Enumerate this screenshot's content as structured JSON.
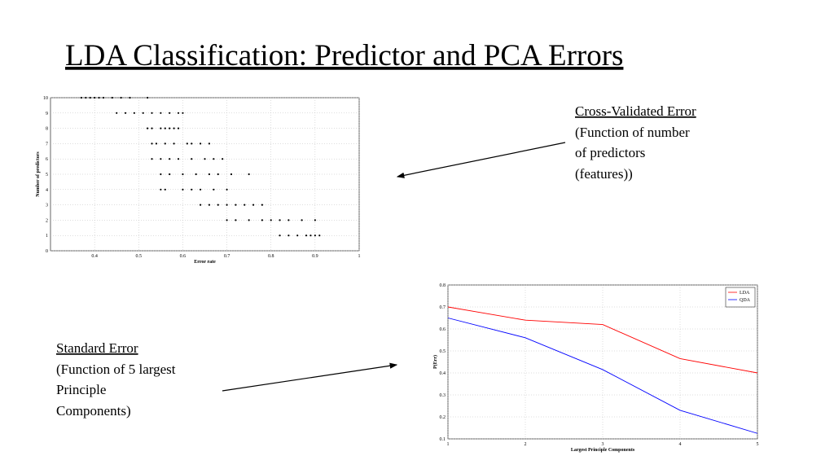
{
  "title": "LDA Classification:  Predictor and PCA Errors",
  "annotations": [
    {
      "heading": "Cross-Validated Error",
      "lines": [
        "(Function of number",
        "of predictors",
        "(features))"
      ]
    },
    {
      "heading": "Standard Error",
      "lines": [
        "(Function of 5 largest",
        "Principle",
        "Components)"
      ]
    }
  ],
  "chart_data": [
    {
      "type": "scatter",
      "xlabel": "Error rate",
      "ylabel": "Number of predictors",
      "color": "#000000",
      "grid": true,
      "xlim": [
        0.3,
        1
      ],
      "xticks": [
        0.4,
        0.5,
        0.6,
        0.7,
        0.8,
        0.9,
        1
      ],
      "ylim": [
        0,
        10
      ],
      "yticks": [
        0,
        1,
        2,
        3,
        4,
        5,
        6,
        7,
        8,
        9,
        10
      ],
      "x": [
        0.37,
        0.38,
        0.39,
        0.4,
        0.41,
        0.42,
        0.44,
        0.46,
        0.48,
        0.52,
        0.45,
        0.47,
        0.49,
        0.51,
        0.53,
        0.55,
        0.57,
        0.59,
        0.6,
        0.52,
        0.53,
        0.55,
        0.56,
        0.57,
        0.58,
        0.59,
        0.53,
        0.54,
        0.56,
        0.58,
        0.61,
        0.62,
        0.64,
        0.66,
        0.53,
        0.55,
        0.57,
        0.59,
        0.62,
        0.65,
        0.67,
        0.69,
        0.55,
        0.57,
        0.6,
        0.63,
        0.66,
        0.68,
        0.71,
        0.75,
        0.55,
        0.56,
        0.6,
        0.62,
        0.64,
        0.67,
        0.7,
        0.64,
        0.66,
        0.68,
        0.7,
        0.72,
        0.74,
        0.76,
        0.78,
        0.7,
        0.72,
        0.75,
        0.78,
        0.8,
        0.82,
        0.84,
        0.87,
        0.9,
        0.82,
        0.84,
        0.86,
        0.88,
        0.89,
        0.9,
        0.91
      ],
      "values": [
        10,
        10,
        10,
        10,
        10,
        10,
        10,
        10,
        10,
        10,
        9,
        9,
        9,
        9,
        9,
        9,
        9,
        9,
        9,
        8,
        8,
        8,
        8,
        8,
        8,
        8,
        7,
        7,
        7,
        7,
        7,
        7,
        7,
        7,
        6,
        6,
        6,
        6,
        6,
        6,
        6,
        6,
        5,
        5,
        5,
        5,
        5,
        5,
        5,
        5,
        4,
        4,
        4,
        4,
        4,
        4,
        4,
        3,
        3,
        3,
        3,
        3,
        3,
        3,
        3,
        2,
        2,
        2,
        2,
        2,
        2,
        2,
        2,
        2,
        1,
        1,
        1,
        1,
        1,
        1,
        1
      ]
    },
    {
      "type": "line",
      "xlabel": "Largest Principle Components",
      "ylabel": "P(Err)",
      "grid": true,
      "legend": "upper right",
      "x": [
        1,
        2,
        3,
        4,
        5
      ],
      "xlim": [
        1,
        5
      ],
      "xticks": [
        1,
        2,
        3,
        4,
        5
      ],
      "ylim": [
        0.1,
        0.8
      ],
      "yticks": [
        0.1,
        0.2,
        0.3,
        0.4,
        0.5,
        0.6,
        0.7,
        0.8
      ],
      "series": [
        {
          "name": "LDA",
          "color": "#ff0000",
          "values": [
            0.7,
            0.64,
            0.62,
            0.465,
            0.4
          ]
        },
        {
          "name": "QDA",
          "color": "#0000ff",
          "values": [
            0.65,
            0.56,
            0.415,
            0.23,
            0.125
          ]
        }
      ]
    }
  ]
}
